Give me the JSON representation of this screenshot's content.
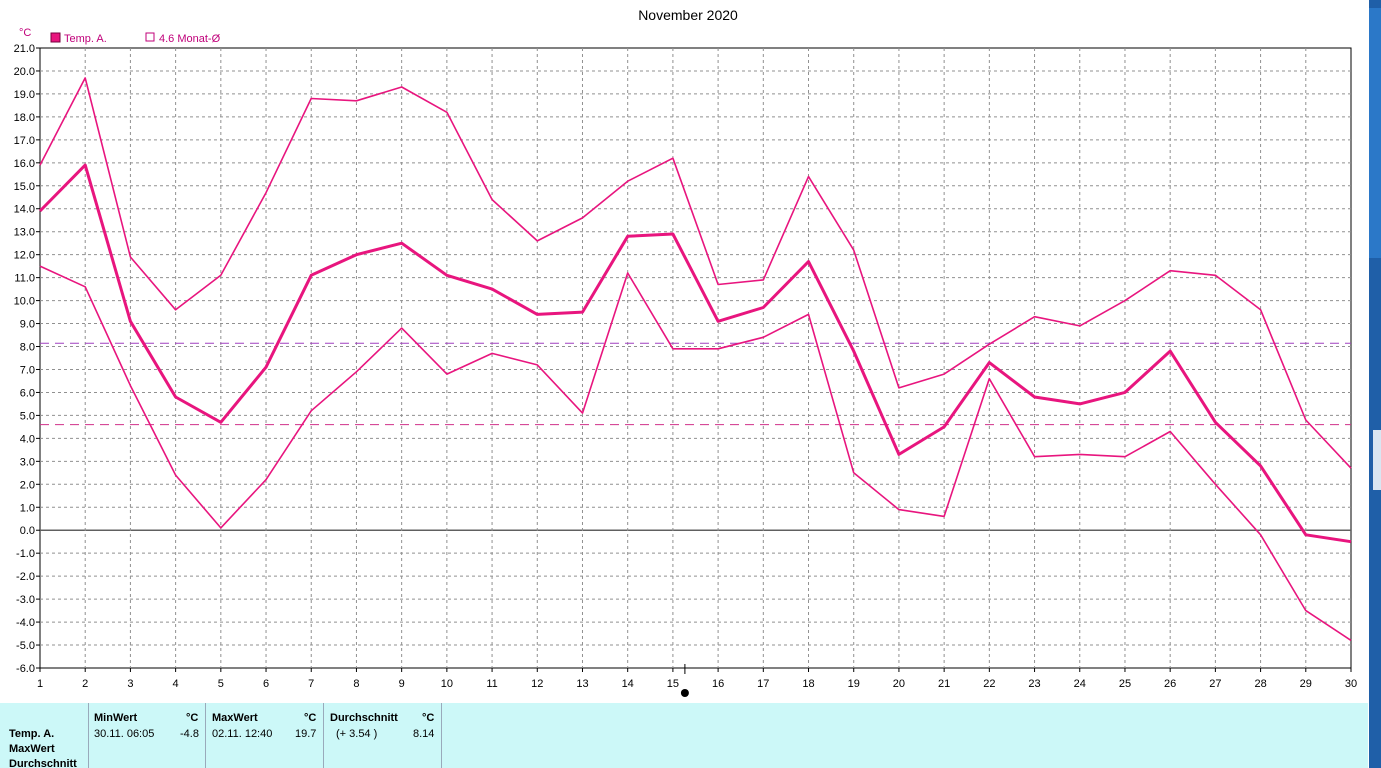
{
  "chart_data": {
    "type": "line",
    "title": "November 2020",
    "ylabel": "°C",
    "ylim": [
      -6,
      21
    ],
    "yticks": [
      "21.0",
      "20.0",
      "19.0",
      "18.0",
      "17.0",
      "16.0",
      "15.0",
      "14.0",
      "13.0",
      "12.0",
      "11.0",
      "10.0",
      "9.0",
      "8.0",
      "7.0",
      "6.0",
      "5.0",
      "4.0",
      "3.0",
      "2.0",
      "1.0",
      "0.0",
      "-1.0",
      "-2.0",
      "-3.0",
      "-4.0",
      "-5.0",
      "-6.0"
    ],
    "x": [
      "1",
      "2",
      "3",
      "4",
      "5",
      "6",
      "7",
      "8",
      "9",
      "10",
      "11",
      "12",
      "13",
      "14",
      "15",
      "16",
      "17",
      "18",
      "19",
      "20",
      "21",
      "22",
      "23",
      "24",
      "25",
      "26",
      "27",
      "28",
      "29",
      "30"
    ],
    "legend": [
      {
        "label": "Temp. A.",
        "swatch": "filled"
      },
      {
        "label": "4.6 Monat-Ø",
        "swatch": "open"
      }
    ],
    "series": [
      {
        "name": "Temp. A.",
        "role": "max",
        "values": [
          15.9,
          19.7,
          11.9,
          9.6,
          11.1,
          14.7,
          18.8,
          18.7,
          19.3,
          18.2,
          14.4,
          12.6,
          13.6,
          15.2,
          16.2,
          10.7,
          10.9,
          15.4,
          12.2,
          6.2,
          6.8,
          8.1,
          9.3,
          8.9,
          10.0,
          11.3,
          11.1,
          9.6,
          4.8,
          2.7
        ]
      },
      {
        "name": "Temp. A.",
        "role": "mean",
        "values": [
          13.9,
          15.9,
          9.1,
          5.8,
          4.7,
          7.1,
          11.1,
          12.0,
          12.5,
          11.1,
          10.5,
          9.4,
          9.5,
          12.8,
          12.9,
          9.1,
          9.7,
          11.7,
          7.8,
          3.3,
          4.5,
          7.3,
          5.8,
          5.5,
          6.0,
          7.8,
          4.7,
          2.8,
          -0.2,
          -0.5
        ]
      },
      {
        "name": "Temp. A.",
        "role": "min",
        "values": [
          11.5,
          10.6,
          6.3,
          2.4,
          0.1,
          2.2,
          5.2,
          6.9,
          8.8,
          6.8,
          7.7,
          7.2,
          5.1,
          11.2,
          7.9,
          7.9,
          8.4,
          9.4,
          2.5,
          0.9,
          0.6,
          6.6,
          3.2,
          3.3,
          3.2,
          4.3,
          2.0,
          -0.2,
          -3.5,
          -4.8
        ]
      }
    ],
    "reference_lines": [
      {
        "value": 8.14,
        "color": "#a040c0",
        "style": "dashed"
      },
      {
        "value": 4.6,
        "color": "#d0308a",
        "style": "dashed"
      }
    ],
    "colors": {
      "line": "#e8157e",
      "grid": "#909090",
      "zero": "#606060",
      "axis_text": "#000000",
      "legend_text": "#c0007a"
    },
    "grid": true
  },
  "stats": {
    "row_labels": [
      "Temp. A.",
      "MaxWert",
      "Durchschnitt"
    ],
    "min": {
      "header": "MinWert",
      "unit": "°C",
      "when": "30.11.  06:05",
      "value": "-4.8"
    },
    "max": {
      "header": "MaxWert",
      "unit": "°C",
      "when": "02.11.  12:40",
      "value": "19.7"
    },
    "avg": {
      "header": "Durchschnitt",
      "unit": "°C",
      "diff": "(+ 3.54 )",
      "value": "8.14"
    }
  }
}
